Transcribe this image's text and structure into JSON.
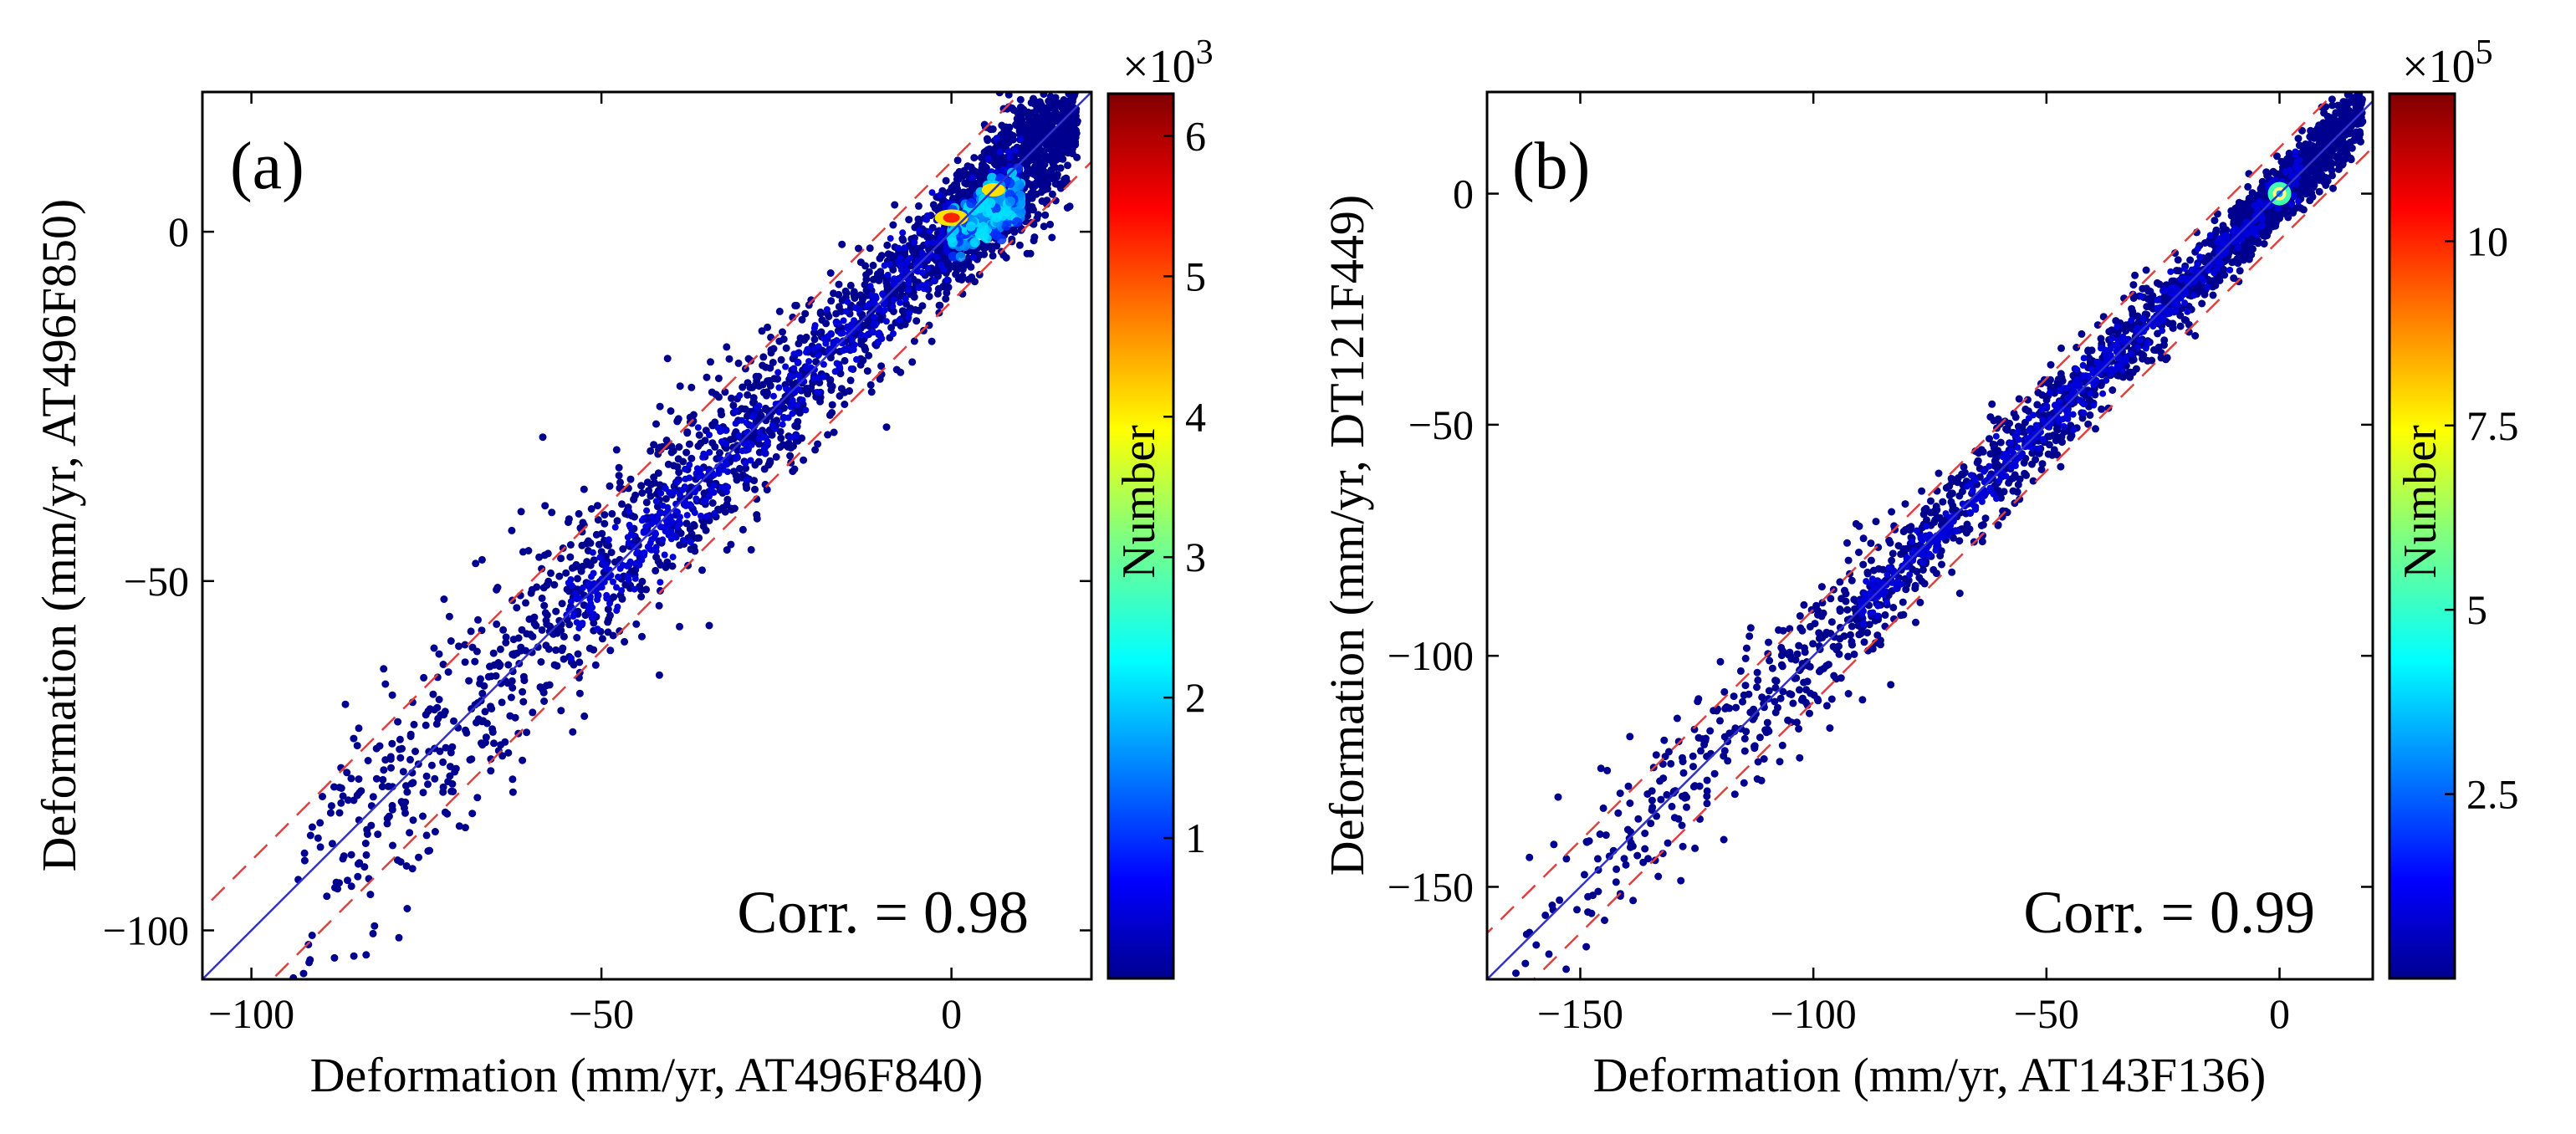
{
  "chart_data": [
    {
      "type": "scatter",
      "panel_label": "(a)",
      "xlabel": "Deformation (mm/yr, AT496F840)",
      "ylabel": "Deformation (mm/yr, AT496F850)",
      "xlim": [
        -107,
        20
      ],
      "ylim": [
        -107,
        20
      ],
      "xticks": [
        -100,
        -50,
        0
      ],
      "yticks": [
        -100,
        -50,
        0
      ],
      "corr_text": "Corr. = 0.98",
      "identity_line": true,
      "dashed_band_offset": 10,
      "density_cluster": {
        "x_range": [
          0,
          10
        ],
        "y_range": [
          0,
          8
        ],
        "peak": [
          0,
          2
        ]
      },
      "colorbar": {
        "label": "Number",
        "multiplier": "×10",
        "multiplier_exp": "3",
        "range": [
          0,
          6.3
        ],
        "ticks": [
          1,
          2,
          3,
          4,
          5,
          6
        ],
        "colormap": "jet"
      }
    },
    {
      "type": "scatter",
      "panel_label": "(b)",
      "xlabel": "Deformation (mm/yr, AT143F136)",
      "ylabel": "Deformation (mm/yr, DT121F449)",
      "xlim": [
        -170,
        20
      ],
      "ylim": [
        -170,
        22
      ],
      "xticks": [
        -150,
        -100,
        -50,
        0
      ],
      "yticks": [
        -150,
        -100,
        -50,
        0
      ],
      "corr_text": "Corr. = 0.99",
      "identity_line": true,
      "dashed_band_offset": 10,
      "density_cluster": {
        "x_range": [
          -2,
          2
        ],
        "y_range": [
          -2,
          2
        ],
        "peak": [
          0,
          0
        ]
      },
      "colorbar": {
        "label": "Number",
        "multiplier": "×10",
        "multiplier_exp": "5",
        "range": [
          0,
          12
        ],
        "ticks": [
          2.5,
          5,
          7.5,
          10
        ],
        "colormap": "jet"
      }
    }
  ]
}
